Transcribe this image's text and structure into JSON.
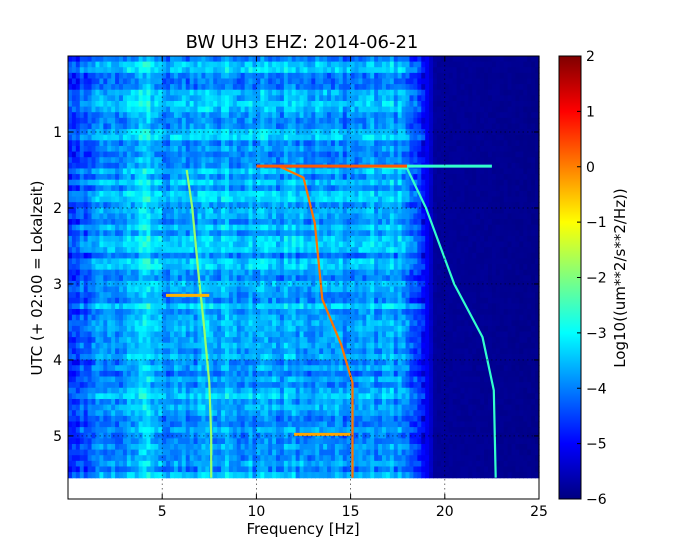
{
  "chart_data": {
    "type": "heatmap",
    "title": "BW UH3 EHZ: 2014-06-21",
    "xlabel": "Frequency [Hz]",
    "ylabel": "UTC (+ 02:00 = Lokalzeit)",
    "xlim": [
      0,
      25
    ],
    "ylim": [
      5.83,
      0
    ],
    "data_ylim": [
      5.55,
      0
    ],
    "x_ticks": [
      5,
      10,
      15,
      20,
      25
    ],
    "y_ticks": [
      1,
      2,
      3,
      4,
      5
    ],
    "grid": true,
    "colormap": "jet",
    "colorbar": {
      "label": "Log10((um**2/s**2/Hz))",
      "range": [
        -6,
        2
      ],
      "ticks": [
        2,
        1,
        0,
        -1,
        -2,
        -3,
        -4,
        -5,
        -6
      ]
    },
    "background_level_by_frequency": {
      "x": [
        0,
        1.5,
        3.5,
        4.0,
        5,
        10,
        15,
        17,
        18.5,
        19.5,
        25
      ],
      "value": [
        -4.6,
        -4.0,
        -3.6,
        -3.0,
        -3.7,
        -3.6,
        -3.9,
        -3.5,
        -4.2,
        -5.8,
        -5.9
      ]
    },
    "series": [
      {
        "name": "",
        "x": [
          6.3,
          6.6,
          6.9,
          7.2,
          7.5,
          7.6,
          7.6
        ],
        "y": [
          1.5,
          2.0,
          2.8,
          3.5,
          4.3,
          5.0,
          5.55
        ],
        "value": -1.8
      },
      {
        "name": "",
        "x": [
          11.2,
          12.5,
          13.1,
          13.5,
          14.5,
          15.1,
          15.1
        ],
        "y": [
          1.45,
          1.6,
          2.2,
          3.2,
          3.8,
          4.3,
          5.55
        ],
        "value": 0.1
      },
      {
        "name": "",
        "x": [
          15.5,
          18.0,
          19.0,
          20.5,
          22.0,
          22.6,
          22.7
        ],
        "y": [
          1.45,
          1.48,
          2.0,
          3.0,
          3.7,
          4.4,
          5.55
        ],
        "value": -2.6
      }
    ],
    "horizontal_bands": [
      {
        "x": [
          10.0,
          18.0
        ],
        "y": 1.45,
        "value": 0.3
      },
      {
        "x": [
          18.0,
          22.5
        ],
        "y": 1.45,
        "value": -2.6
      },
      {
        "x": [
          5.2,
          7.5
        ],
        "y": 3.15,
        "value": -0.4
      },
      {
        "x": [
          12.0,
          15.0
        ],
        "y": 4.98,
        "value": -0.3
      }
    ]
  }
}
